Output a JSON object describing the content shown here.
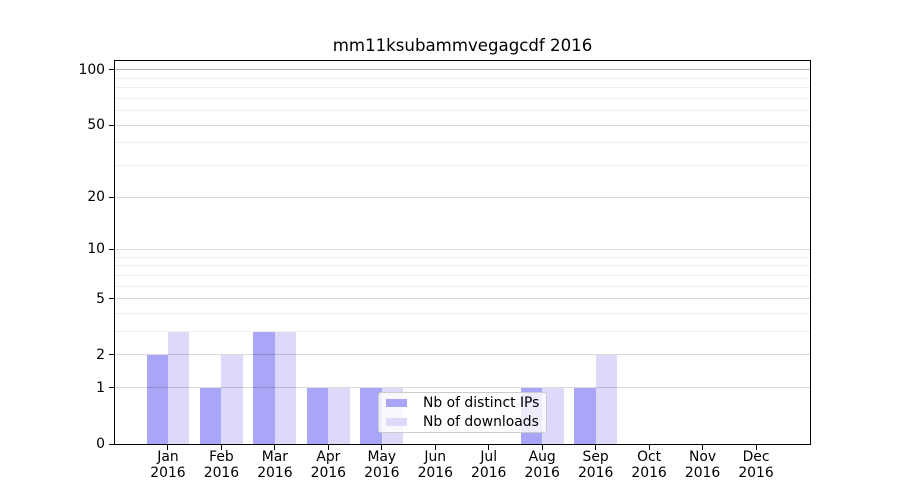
{
  "chart_data": {
    "type": "bar",
    "title": "mm11ksubammvegagcdf 2016",
    "categories": [
      "Jan",
      "Feb",
      "Mar",
      "Apr",
      "May",
      "Jun",
      "Jul",
      "Aug",
      "Sep",
      "Oct",
      "Nov",
      "Dec"
    ],
    "year_label": "2016",
    "series": [
      {
        "name": "Nb of distinct IPs",
        "key": "distinct-ips",
        "color": "#a9a6f7",
        "values": [
          2,
          1,
          3,
          1,
          1,
          0,
          0,
          1,
          1,
          0,
          0,
          0
        ]
      },
      {
        "name": "Nb of downloads",
        "key": "downloads",
        "color": "#dcdaf8",
        "values": [
          3,
          2,
          3,
          1,
          1,
          0,
          0,
          1,
          2,
          0,
          0,
          0
        ]
      }
    ],
    "yscale": "log1p",
    "ylim": [
      0,
      113
    ],
    "yticks": [
      0,
      1,
      2,
      5,
      10,
      20,
      50,
      100
    ],
    "yticklabels": [
      "0",
      "1",
      "2",
      "5",
      "10",
      "20",
      "50",
      "100"
    ],
    "yminorticks": [
      3,
      4,
      6,
      7,
      8,
      9,
      30,
      40,
      60,
      70,
      80,
      90
    ],
    "grid": "horizontal, major and minor, drawn over bars",
    "legend_position": "lower center",
    "plot_bg_color": "#ffffff"
  }
}
